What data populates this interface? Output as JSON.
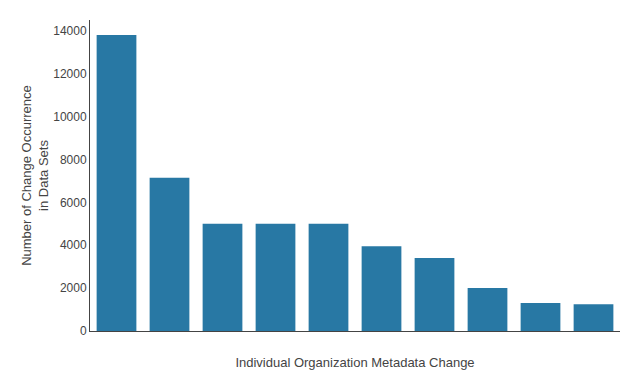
{
  "chart_data": {
    "type": "bar",
    "categories": [
      null,
      null,
      null,
      null,
      null,
      null,
      null,
      null,
      null,
      null
    ],
    "values": [
      13800,
      7150,
      5000,
      5000,
      5000,
      3950,
      3400,
      2000,
      1300,
      1250
    ],
    "color": "#2878a4",
    "xlabel": "Individual Organization Metadata Change",
    "ylabel": "Number of Change Occurrence\nin Data Sets",
    "ylim": [
      0,
      14500
    ],
    "yticks": [
      0,
      2000,
      4000,
      6000,
      8000,
      10000,
      12000,
      14000
    ],
    "grid": false,
    "tick_labels": "y"
  }
}
